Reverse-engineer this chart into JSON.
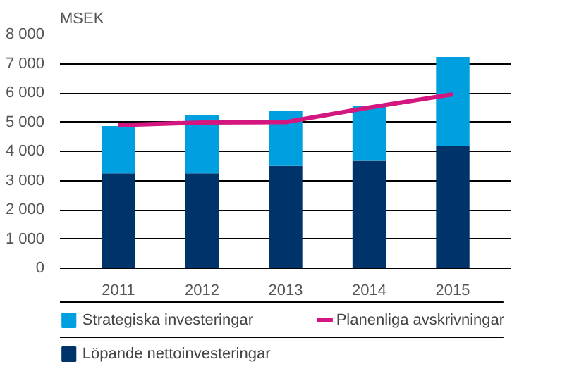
{
  "chart_data": {
    "type": "bar",
    "title": "MSEK",
    "stacked": true,
    "categories": [
      "2011",
      "2012",
      "2013",
      "2014",
      "2015"
    ],
    "series": [
      {
        "name": "Löpande nettoinvesteringar",
        "color": "#00336a",
        "values": [
          3250,
          3250,
          3500,
          3700,
          4170
        ]
      },
      {
        "name": "Strategiska investeringar",
        "color": "#009fe0",
        "values": [
          1620,
          1980,
          1880,
          1860,
          3060
        ]
      },
      {
        "name": "Planenliga avskrivningar",
        "type": "line",
        "color": "#d4167f",
        "values": [
          4900,
          4990,
          5000,
          5500,
          5950
        ]
      }
    ],
    "ylim": [
      0,
      8000
    ],
    "yticks": [
      {
        "value": 0,
        "label": "0"
      },
      {
        "value": 1000,
        "label": "1 000"
      },
      {
        "value": 2000,
        "label": "2 000"
      },
      {
        "value": 3000,
        "label": "3 000"
      },
      {
        "value": 4000,
        "label": "4 000"
      },
      {
        "value": 5000,
        "label": "5 000"
      },
      {
        "value": 6000,
        "label": "6 000"
      },
      {
        "value": 7000,
        "label": "7 000"
      },
      {
        "value": 8000,
        "label": "8 000"
      }
    ],
    "grid": "y",
    "legend": "bottom"
  }
}
